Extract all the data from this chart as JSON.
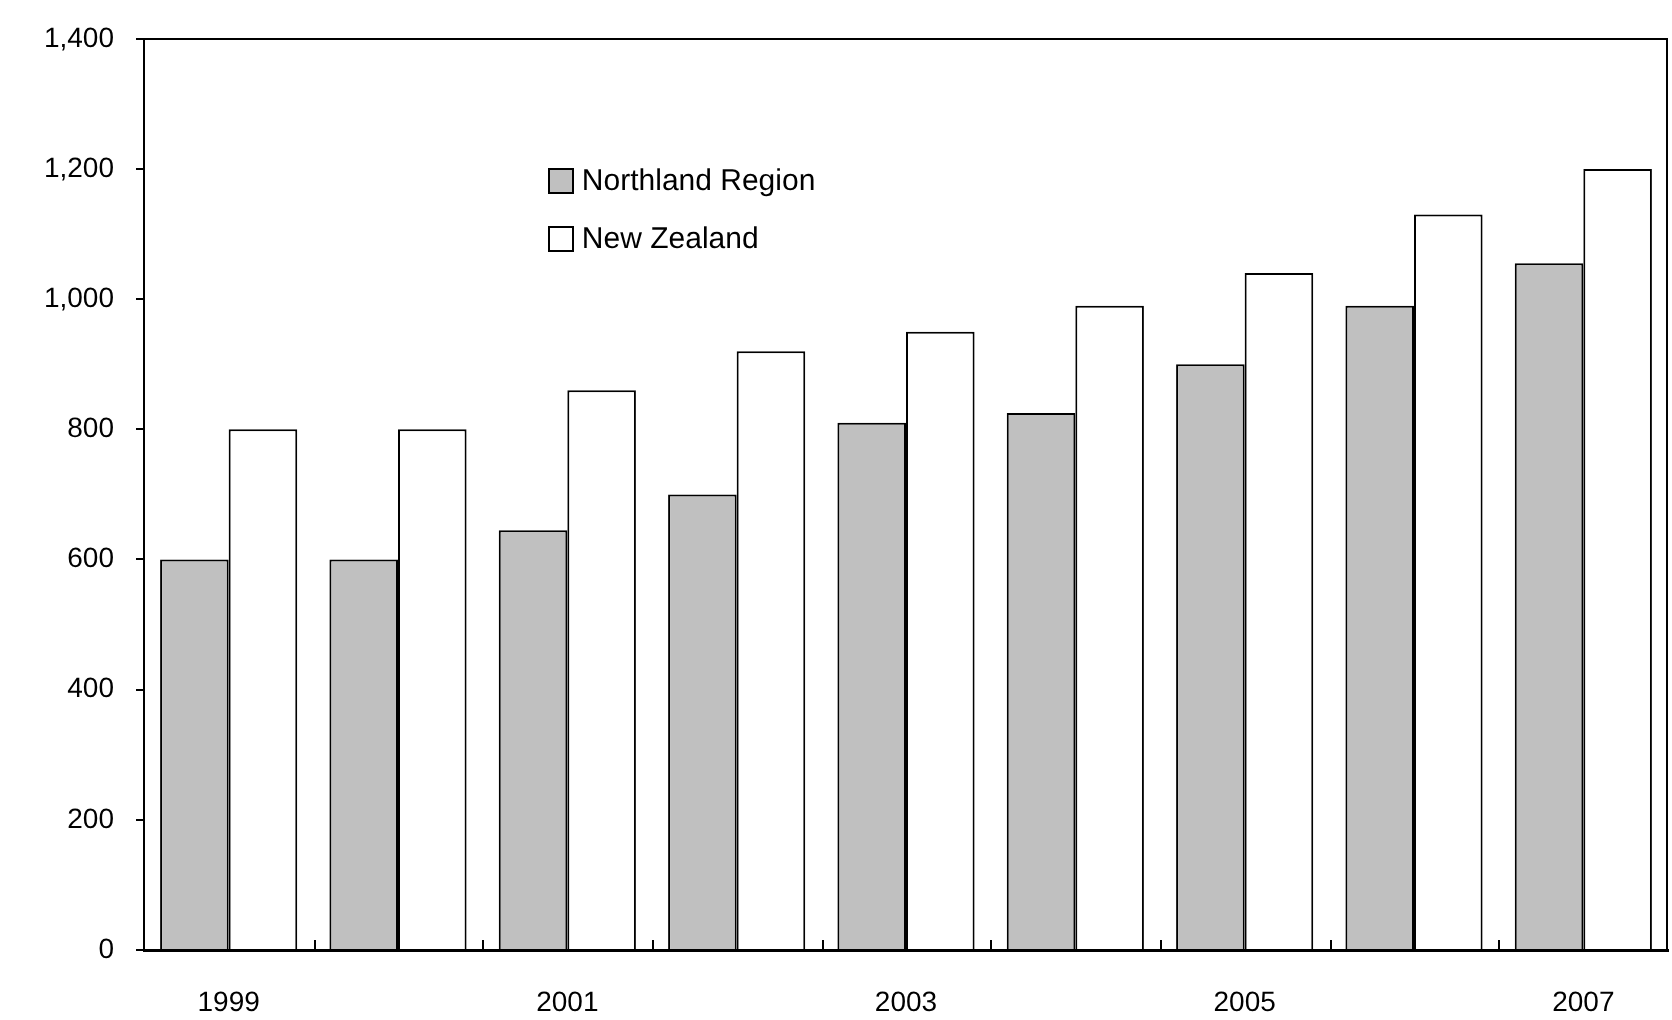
{
  "chart_data": {
    "type": "bar",
    "categories": [
      "1999",
      null,
      "2001",
      null,
      "2003",
      null,
      "2005",
      null,
      "2007"
    ],
    "series": [
      {
        "name": "Northland Region",
        "color": "#c0c0c0",
        "values": [
          600,
          600,
          645,
          700,
          810,
          825,
          900,
          990,
          1055
        ]
      },
      {
        "name": "New Zealand",
        "color": "#ffffff",
        "values": [
          800,
          800,
          860,
          920,
          950,
          990,
          1040,
          1130,
          1200
        ]
      }
    ],
    "ylim": [
      0,
      1400
    ],
    "yticks": [
      0,
      200,
      400,
      600,
      800,
      {
        "value": 1000,
        "label": "1,000"
      },
      {
        "value": 1200,
        "label": "1,200"
      },
      {
        "value": 1400,
        "label": "1,400"
      }
    ],
    "grid": false,
    "legend": "top left"
  }
}
